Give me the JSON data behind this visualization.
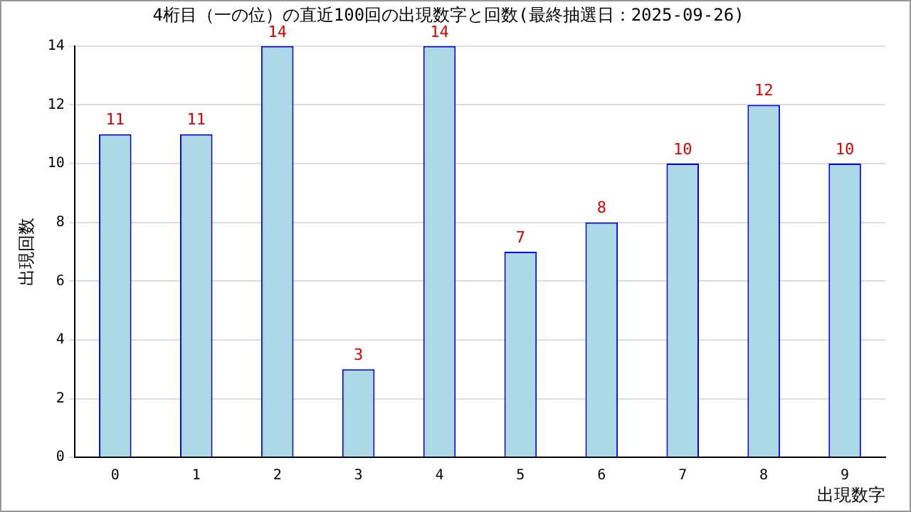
{
  "chart_data": {
    "type": "bar",
    "title": "4桁目（一の位）の直近100回の出現数字と回数(最終抽選日：2025-09-26)",
    "xlabel": "出現数字",
    "ylabel": "出現回数",
    "categories": [
      "0",
      "1",
      "2",
      "3",
      "4",
      "5",
      "6",
      "7",
      "8",
      "9"
    ],
    "values": [
      11,
      11,
      14,
      3,
      14,
      7,
      8,
      10,
      12,
      10
    ],
    "color": "#add8e6",
    "ylim": [
      0,
      14
    ],
    "yticks": [
      0,
      2,
      4,
      6,
      8,
      10,
      12,
      14
    ],
    "grid": "y",
    "data_labels": true,
    "legend": false
  }
}
